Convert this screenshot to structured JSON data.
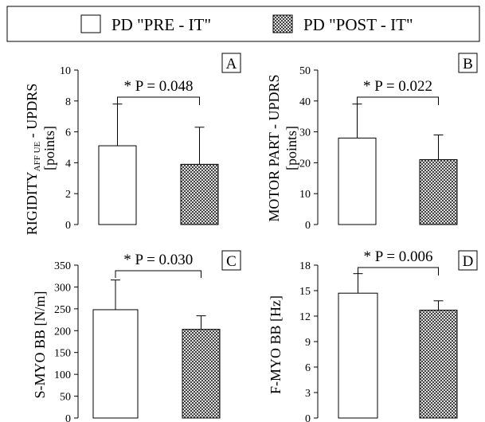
{
  "legend": {
    "items": [
      {
        "label": "PD \"PRE - IT\"",
        "fill": "white"
      },
      {
        "label": "PD \"POST - IT\"",
        "fill": "crosshatch"
      }
    ]
  },
  "colors": {
    "bar_pre": "#ffffff",
    "hatch": "#000000",
    "background": "#ffffff"
  },
  "chart_data": [
    {
      "type": "bar",
      "panel_label": "A",
      "categories": [
        "PD \"PRE - IT\"",
        "PD \"POST - IT\""
      ],
      "values": [
        5.1,
        3.9
      ],
      "error_upper": [
        7.8,
        6.3
      ],
      "ylim": [
        0,
        10
      ],
      "yticks": [
        0,
        2,
        4,
        6,
        8,
        10
      ],
      "ylabel_main": "RIGIDITY",
      "ylabel_sub": "AFF UE",
      "ylabel_rest": " - UPDRS",
      "ylabel_line2": "[points]",
      "annotation": "* P = 0.048",
      "grid": false
    },
    {
      "type": "bar",
      "panel_label": "B",
      "categories": [
        "PD \"PRE - IT\"",
        "PD \"POST - IT\""
      ],
      "values": [
        28,
        21
      ],
      "error_upper": [
        39,
        29
      ],
      "ylim": [
        0,
        50
      ],
      "yticks": [
        0,
        10,
        20,
        30,
        40,
        50
      ],
      "ylabel_main": "MOTOR PART - UPDRS",
      "ylabel_line2": "[points]",
      "annotation": "* P = 0.022",
      "grid": false
    },
    {
      "type": "bar",
      "panel_label": "C",
      "categories": [
        "PD \"PRE - IT\"",
        "PD \"POST - IT\""
      ],
      "values": [
        248,
        203
      ],
      "error_upper": [
        316,
        234
      ],
      "ylim": [
        0,
        350
      ],
      "yticks": [
        0,
        50,
        100,
        150,
        200,
        250,
        300,
        350
      ],
      "ylabel_main": "S-MYO BB [N/m]",
      "annotation": "* P = 0.030",
      "grid": false
    },
    {
      "type": "bar",
      "panel_label": "D",
      "categories": [
        "PD \"PRE - IT\"",
        "PD \"POST - IT\""
      ],
      "values": [
        14.7,
        12.7
      ],
      "error_upper": [
        17.0,
        13.8
      ],
      "ylim": [
        0,
        18
      ],
      "yticks": [
        0,
        3,
        6,
        9,
        12,
        15,
        18
      ],
      "ylabel_main": "F-MYO BB [Hz]",
      "annotation": "* P = 0.006",
      "grid": false
    }
  ]
}
